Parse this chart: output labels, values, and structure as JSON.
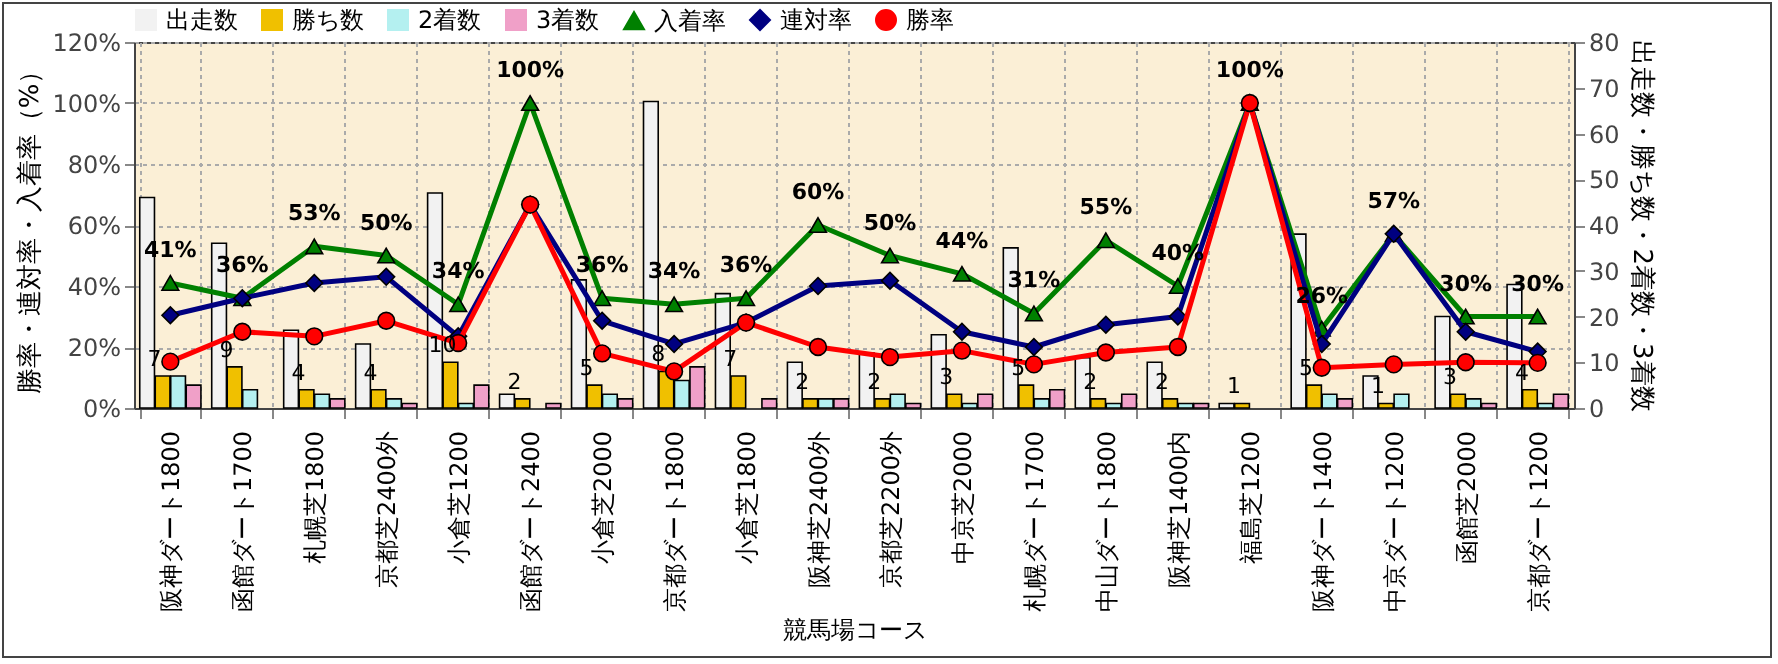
{
  "chart_data": {
    "type": "bar",
    "xlabel": "競馬場コース",
    "ylabel": "勝率・連対率・入着率（%）",
    "y2label": "出走数・勝ち数・2着数・3着数",
    "categories": [
      "阪神ダート1800",
      "函館ダート1700",
      "札幌芝1800",
      "京都芝2400外",
      "小倉芝1200",
      "函館ダート2400",
      "小倉芝2000",
      "京都ダート1800",
      "小倉芝1800",
      "阪神芝2400外",
      "京都芝2200外",
      "中京芝2000",
      "札幌ダート1700",
      "中山ダート1800",
      "阪神芝1400内",
      "福島芝1200",
      "阪神ダート1400",
      "中京ダート1200",
      "函館芝2000",
      "京都ダート1200"
    ],
    "series": [
      {
        "name": "出走数",
        "axis": "y2",
        "color": "#f2f2f2",
        "values": [
          46,
          36,
          17,
          14,
          47,
          3,
          28,
          67,
          25,
          10,
          12,
          16,
          35,
          11,
          10,
          1,
          38,
          7,
          20,
          27
        ]
      },
      {
        "name": "勝ち数",
        "axis": "y2",
        "color": "#f0c000",
        "values": [
          7,
          9,
          4,
          4,
          10,
          2,
          5,
          8,
          7,
          2,
          2,
          3,
          5,
          2,
          2,
          1,
          5,
          1,
          3,
          4
        ],
        "value_labels": [
          "7",
          "9",
          "4",
          "4",
          "10",
          "2",
          "5",
          "8",
          "7",
          "2",
          "2",
          "3",
          "5",
          "2",
          "2",
          "1",
          "5",
          "1",
          "3",
          "4"
        ]
      },
      {
        "name": "2着数",
        "axis": "y2",
        "color": "#b4f0f0",
        "values": [
          7,
          4,
          3,
          2,
          1,
          0,
          3,
          6,
          0,
          2,
          3,
          1,
          2,
          1,
          1,
          0,
          3,
          3,
          2,
          1
        ]
      },
      {
        "name": "3着数",
        "axis": "y2",
        "color": "#f0a0c8",
        "values": [
          5,
          0,
          2,
          1,
          5,
          1,
          2,
          9,
          2,
          2,
          1,
          3,
          4,
          3,
          1,
          0,
          2,
          0,
          1,
          3
        ]
      },
      {
        "name": "入着率",
        "type": "line",
        "marker": "triangle",
        "color": "#008000",
        "values": [
          41,
          36,
          53,
          50,
          34,
          100,
          36,
          34,
          36,
          60,
          50,
          44,
          31,
          55,
          40,
          100,
          26,
          57,
          30,
          30
        ],
        "value_labels": [
          "41%",
          "36%",
          "53%",
          "50%",
          "34%",
          "100%",
          "36%",
          "34%",
          "36%",
          "60%",
          "50%",
          "44%",
          "31%",
          "55%",
          "40%",
          "100%",
          "26%",
          "57%",
          "30%",
          "30%"
        ]
      },
      {
        "name": "連対率",
        "type": "line",
        "marker": "diamond",
        "color": "#000080",
        "values": [
          30.4,
          36,
          41,
          43,
          23.5,
          66.7,
          28.6,
          21,
          28,
          40,
          41.7,
          25,
          20,
          27.3,
          30,
          100,
          21,
          57.1,
          25,
          18.5
        ]
      },
      {
        "name": "勝率",
        "type": "line",
        "marker": "circle",
        "color": "#ff0000",
        "values": [
          15.2,
          25,
          23.5,
          28.6,
          21.3,
          66.7,
          17.9,
          12,
          28,
          20,
          16.7,
          18.8,
          14.3,
          18.2,
          20,
          100,
          13.2,
          14.3,
          15,
          14.8
        ]
      }
    ],
    "ylim": [
      0,
      120
    ],
    "yticks": [
      {
        "value": 0,
        "label": "0%"
      },
      {
        "value": 20,
        "label": "20%"
      },
      {
        "value": 40,
        "label": "40%"
      },
      {
        "value": 60,
        "label": "60%"
      },
      {
        "value": 80,
        "label": "80%"
      },
      {
        "value": 100,
        "label": "100%"
      },
      {
        "value": 120,
        "label": "120%"
      }
    ],
    "y2lim": [
      0,
      80
    ],
    "y2ticks": [
      0,
      10,
      20,
      30,
      40,
      50,
      60,
      70,
      80
    ],
    "grid": true,
    "legend": "top"
  }
}
